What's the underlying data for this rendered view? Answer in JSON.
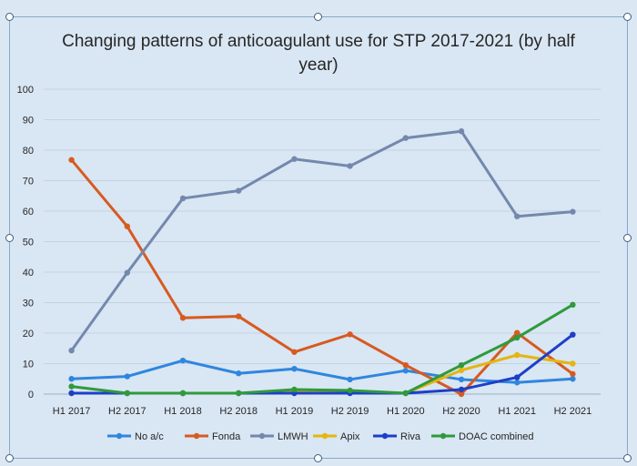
{
  "chart_data": {
    "type": "line",
    "title": "Changing patterns of anticoagulant use for STP 2017-2021 (by half year)",
    "title_lines": [
      "Changing patterns of anticoagulant use for STP 2017-2021 (by half",
      "year)"
    ],
    "categories": [
      "H1 2017",
      "H2 2017",
      "H1 2018",
      "H2 2018",
      "H1 2019",
      "H2 2019",
      "H1 2020",
      "H2 2020",
      "H1 2021",
      "H2 2021"
    ],
    "ylim": [
      0,
      100
    ],
    "yticks": [
      0,
      10,
      20,
      30,
      40,
      50,
      60,
      70,
      80,
      90,
      100
    ],
    "grid": true,
    "legend_position": "bottom",
    "series": [
      {
        "name": "No a/c",
        "color": "#2e86de",
        "values": [
          5,
          5.8,
          11,
          6.8,
          8.3,
          4.8,
          7.7,
          4.8,
          3.8,
          5
        ]
      },
      {
        "name": "Fonda",
        "color": "#d75a20",
        "values": [
          76.8,
          55,
          25,
          25.5,
          13.8,
          19.6,
          9.5,
          0,
          20.1,
          6.6
        ]
      },
      {
        "name": "LMWH",
        "color": "#7488ad",
        "values": [
          14.3,
          39.8,
          64.2,
          66.7,
          77.1,
          74.8,
          84,
          86.2,
          58.3,
          59.8
        ]
      },
      {
        "name": "Apix",
        "color": "#e3b611",
        "values": [
          0.3,
          0.3,
          0.3,
          0.3,
          0.8,
          0.8,
          0.3,
          7.8,
          12.8,
          10
        ]
      },
      {
        "name": "Riva",
        "color": "#1d3fc8",
        "values": [
          0.3,
          0.3,
          0.3,
          0.3,
          0.3,
          0.3,
          0.3,
          1.5,
          5.5,
          19.5
        ]
      },
      {
        "name": "DOAC combined",
        "color": "#2f9a3c",
        "values": [
          2.5,
          0.3,
          0.3,
          0.3,
          1.5,
          1.2,
          0.3,
          9.5,
          18.5,
          29.3
        ]
      }
    ]
  }
}
